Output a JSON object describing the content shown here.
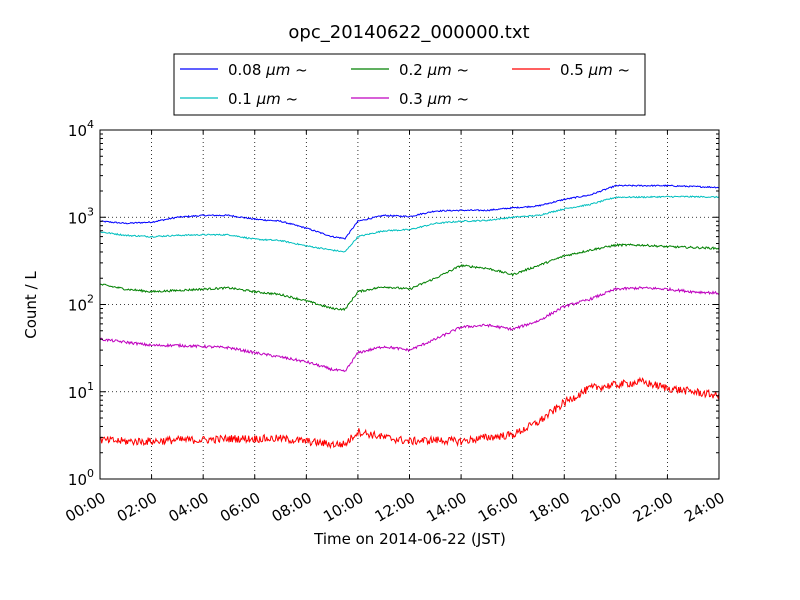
{
  "chart_data": {
    "type": "line",
    "title": "opc_20140622_000000.txt",
    "xlabel": "Time on 2014-06-22 (JST)",
    "ylabel": "Count / L",
    "yscale": "log",
    "xlim": [
      "00:00",
      "24:00"
    ],
    "ylim": [
      1,
      10000
    ],
    "grid": true,
    "legend_position": "top-center, above plot",
    "x_ticks": [
      "00:00",
      "02:00",
      "04:00",
      "06:00",
      "08:00",
      "10:00",
      "12:00",
      "14:00",
      "16:00",
      "18:00",
      "20:00",
      "22:00",
      "24:00"
    ],
    "y_ticks": [
      {
        "base": "10",
        "exp": "0"
      },
      {
        "base": "10",
        "exp": "1"
      },
      {
        "base": "10",
        "exp": "2"
      },
      {
        "base": "10",
        "exp": "3"
      },
      {
        "base": "10",
        "exp": "4"
      }
    ],
    "x": [
      "00:00",
      "01:00",
      "02:00",
      "03:00",
      "04:00",
      "05:00",
      "06:00",
      "07:00",
      "08:00",
      "09:00",
      "09:30",
      "10:00",
      "11:00",
      "12:00",
      "13:00",
      "14:00",
      "15:00",
      "16:00",
      "17:00",
      "18:00",
      "19:00",
      "20:00",
      "21:00",
      "22:00",
      "23:00",
      "24:00"
    ],
    "series": [
      {
        "name": "0.08",
        "unit": "μm",
        "suffix": "~",
        "color": "#0000ff",
        "values": [
          900,
          850,
          880,
          1000,
          1050,
          1050,
          950,
          900,
          750,
          600,
          570,
          900,
          1050,
          1020,
          1180,
          1200,
          1200,
          1280,
          1350,
          1600,
          1800,
          2300,
          2300,
          2300,
          2250,
          2200
        ]
      },
      {
        "name": "0.1",
        "unit": "μm",
        "suffix": "~",
        "color": "#00bfbf",
        "values": [
          680,
          620,
          600,
          620,
          630,
          630,
          560,
          540,
          470,
          420,
          400,
          600,
          700,
          720,
          850,
          900,
          920,
          1000,
          1050,
          1250,
          1400,
          1700,
          1700,
          1720,
          1720,
          1700
        ]
      },
      {
        "name": "0.2",
        "unit": "μm",
        "suffix": "~",
        "color": "#008000",
        "values": [
          170,
          150,
          140,
          145,
          150,
          155,
          140,
          130,
          110,
          90,
          88,
          140,
          160,
          150,
          200,
          280,
          260,
          220,
          280,
          360,
          420,
          480,
          480,
          460,
          450,
          440
        ]
      },
      {
        "name": "0.3",
        "unit": "μm",
        "suffix": "~",
        "color": "#bf00bf",
        "values": [
          40,
          37,
          34,
          34,
          33,
          32,
          28,
          25,
          22,
          18,
          17,
          28,
          33,
          30,
          40,
          55,
          58,
          52,
          65,
          95,
          115,
          150,
          155,
          150,
          140,
          135
        ]
      },
      {
        "name": "0.5",
        "unit": "μm",
        "suffix": "~",
        "color": "#ff0000",
        "values": [
          2.8,
          2.7,
          2.7,
          2.8,
          2.8,
          2.9,
          2.9,
          2.9,
          2.7,
          2.5,
          2.5,
          3.5,
          3.0,
          2.7,
          2.8,
          2.7,
          3.0,
          3.2,
          4.5,
          7.5,
          11,
          12,
          13,
          11,
          10,
          9
        ]
      }
    ]
  }
}
